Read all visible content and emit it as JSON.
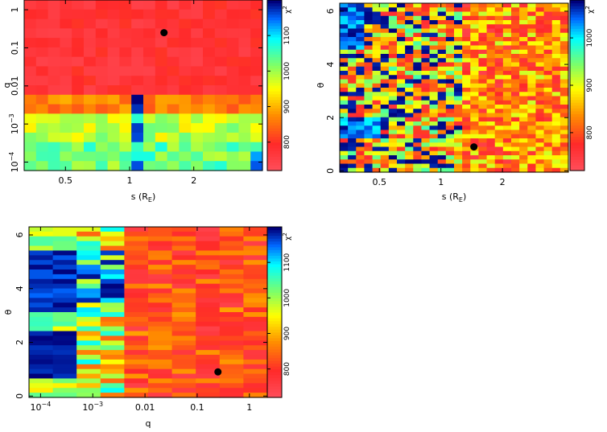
{
  "colorscale": {
    "stops": [
      {
        "t": 0.0,
        "color": "#ff4d59"
      },
      {
        "t": 0.15,
        "color": "#ff2a2a"
      },
      {
        "t": 0.32,
        "color": "#ff8c00"
      },
      {
        "t": 0.48,
        "color": "#ffff00"
      },
      {
        "t": 0.62,
        "color": "#80ff66"
      },
      {
        "t": 0.78,
        "color": "#00ffff"
      },
      {
        "t": 0.9,
        "color": "#0066ff"
      },
      {
        "t": 1.0,
        "color": "#00007a"
      }
    ],
    "marker_color": "#000000"
  },
  "chart_data": [
    {
      "id": "s-vs-q",
      "type": "heatmap",
      "xlabel": "s (R",
      "xlabel_sub": "E",
      "xlabel_close": ")",
      "ylabel": "q",
      "x_scale": "log",
      "y_scale": "log",
      "xlim": [
        0.32,
        4.2
      ],
      "ylim": [
        6e-05,
        1.8
      ],
      "x_ticks": [
        {
          "value": 0.5,
          "label": "0.5"
        },
        {
          "value": 1,
          "label": "1"
        },
        {
          "value": 2,
          "label": "2"
        }
      ],
      "y_ticks": [
        {
          "value": 0.0001,
          "label": "10",
          "sup": "−4"
        },
        {
          "value": 0.001,
          "label": "10",
          "sup": "−3"
        },
        {
          "value": 0.01,
          "label": "0.01"
        },
        {
          "value": 0.1,
          "label": "0.1"
        },
        {
          "value": 1,
          "label": "1"
        }
      ],
      "colorbar": {
        "label": "χ",
        "label_sup": "2",
        "range": [
          720,
          1200
        ],
        "ticks": [
          {
            "value": 800,
            "label": "800"
          },
          {
            "value": 900,
            "label": "900"
          },
          {
            "value": 1000,
            "label": "1000"
          },
          {
            "value": 1100,
            "label": "1100"
          }
        ]
      },
      "best_fit": {
        "x": 1.45,
        "y": 0.25
      },
      "grid_cols": 20,
      "grid_rows": 18
    },
    {
      "id": "s-vs-theta",
      "type": "heatmap",
      "xlabel": "s (R",
      "xlabel_sub": "E",
      "xlabel_close": ")",
      "ylabel": "θ",
      "x_scale": "log",
      "y_scale": "linear",
      "xlim": [
        0.32,
        4.2
      ],
      "ylim": [
        -0.05,
        6.3
      ],
      "x_ticks": [
        {
          "value": 0.5,
          "label": "0.5"
        },
        {
          "value": 1,
          "label": "1"
        },
        {
          "value": 2,
          "label": "2"
        }
      ],
      "y_ticks": [
        {
          "value": 0,
          "label": "0"
        },
        {
          "value": 2,
          "label": "2"
        },
        {
          "value": 4,
          "label": "4"
        },
        {
          "value": 6,
          "label": "6"
        }
      ],
      "colorbar": {
        "label": "χ",
        "label_sup": "2",
        "range": [
          720,
          1080
        ],
        "ticks": [
          {
            "value": 800,
            "label": "800"
          },
          {
            "value": 900,
            "label": "900"
          },
          {
            "value": 1000,
            "label": "1000"
          }
        ]
      },
      "best_fit": {
        "x": 1.45,
        "y": 0.9
      },
      "grid_cols": 28,
      "grid_rows": 40
    },
    {
      "id": "q-vs-theta",
      "type": "heatmap",
      "xlabel": "q",
      "xlabel_sub": "",
      "xlabel_close": "",
      "ylabel": "θ",
      "x_scale": "log",
      "y_scale": "linear",
      "xlim": [
        6e-05,
        2.2
      ],
      "ylim": [
        -0.05,
        6.3
      ],
      "x_ticks": [
        {
          "value": 0.0001,
          "label": "10",
          "sup": "−4"
        },
        {
          "value": 0.001,
          "label": "10",
          "sup": "−3"
        },
        {
          "value": 0.01,
          "label": "0.01"
        },
        {
          "value": 0.1,
          "label": "0.1"
        },
        {
          "value": 1,
          "label": "1"
        }
      ],
      "y_ticks": [
        {
          "value": 0,
          "label": "0"
        },
        {
          "value": 2,
          "label": "2"
        },
        {
          "value": 4,
          "label": "4"
        },
        {
          "value": 6,
          "label": "6"
        }
      ],
      "colorbar": {
        "label": "χ",
        "label_sup": "2",
        "range": [
          720,
          1200
        ],
        "ticks": [
          {
            "value": 800,
            "label": "800"
          },
          {
            "value": 900,
            "label": "900"
          },
          {
            "value": 1000,
            "label": "1000"
          },
          {
            "value": 1100,
            "label": "1100"
          }
        ]
      },
      "best_fit": {
        "x": 0.25,
        "y": 0.9
      },
      "grid_cols": 10,
      "grid_rows": 36
    }
  ]
}
